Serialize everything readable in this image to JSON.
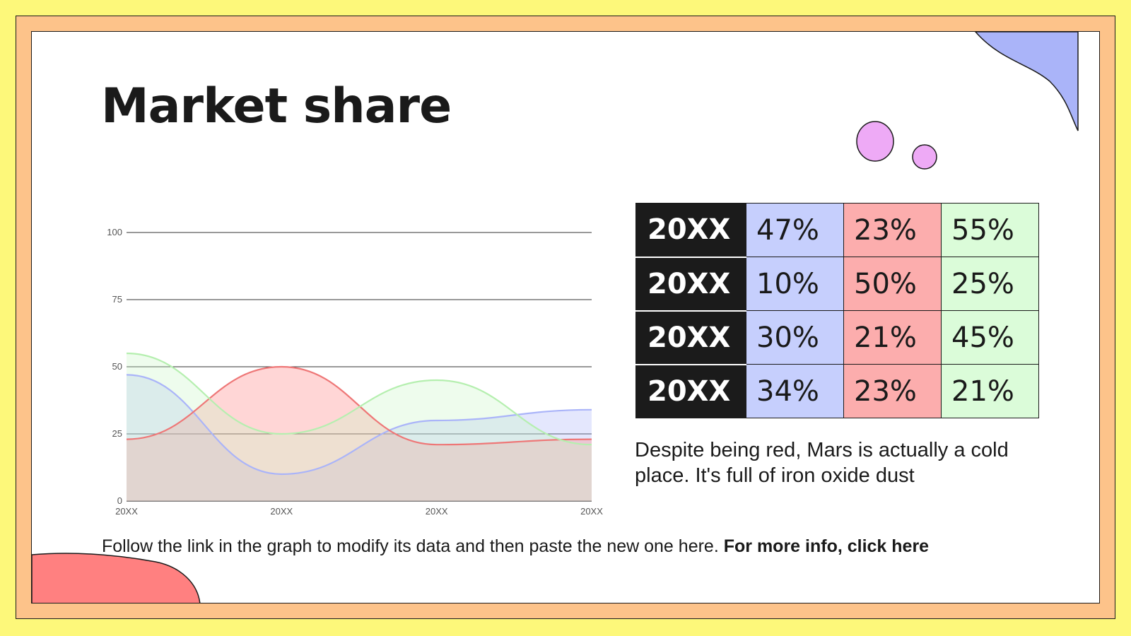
{
  "slide": {
    "title": "Market share",
    "description": "Despite being red, Mars is actually a cold place. It's full of iron oxide dust",
    "footer_text": "Follow the link in the graph to modify its data and then paste the new one here.",
    "footer_link": "For more info, click here"
  },
  "colors": {
    "background": "#fdf87a",
    "frame": "#fdc38a",
    "series_blue": "#aab4f9",
    "series_red": "#ff8080",
    "series_green": "#c9f5c6",
    "bubbles": "#eeaaf6"
  },
  "table": {
    "rows": [
      {
        "year": "20XX",
        "cells": [
          "47%",
          "23%",
          "55%"
        ]
      },
      {
        "year": "20XX",
        "cells": [
          "10%",
          "50%",
          "25%"
        ]
      },
      {
        "year": "20XX",
        "cells": [
          "30%",
          "21%",
          "45%"
        ]
      },
      {
        "year": "20XX",
        "cells": [
          "34%",
          "23%",
          "21%"
        ]
      }
    ]
  },
  "chart_data": {
    "type": "area",
    "categories": [
      "20XX",
      "20XX",
      "20XX",
      "20XX"
    ],
    "series": [
      {
        "color": "#aab4f9",
        "line": "#aab4f9",
        "values": [
          47,
          10,
          30,
          34
        ]
      },
      {
        "color": "#ff8080",
        "line": "#ee7777",
        "values": [
          23,
          50,
          21,
          23
        ]
      },
      {
        "color": "#c9f5c6",
        "line": "#b5efaf",
        "values": [
          55,
          25,
          45,
          21
        ]
      }
    ],
    "yticks": [
      0,
      25,
      50,
      75,
      100
    ],
    "ylim": [
      0,
      100
    ],
    "grid": true,
    "xlabel": "",
    "ylabel": ""
  }
}
